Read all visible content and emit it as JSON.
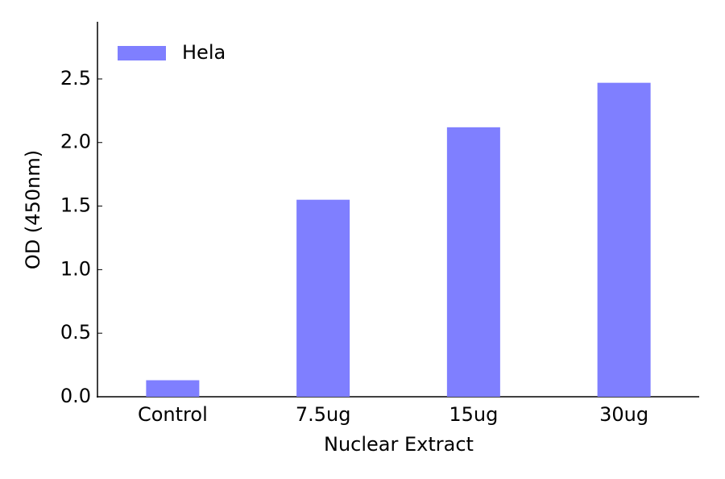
{
  "chart_data": {
    "type": "bar",
    "x_label": "Nuclear Extract",
    "y_label": "OD (450nm)",
    "categories": [
      "Control",
      "7.5ug",
      "15ug",
      "30ug"
    ],
    "series": [
      {
        "name": "Hela",
        "color": "#7f7fff",
        "values": [
          0.13,
          1.55,
          2.12,
          2.47
        ]
      }
    ],
    "ylim": [
      0,
      2.95
    ],
    "yticks": [
      {
        "value": 0,
        "label": "0.0"
      },
      0.5,
      {
        "value": 1,
        "label": "1.0"
      },
      1.5,
      {
        "value": 2,
        "label": "2.0"
      },
      2.5
    ],
    "grid": false,
    "legend": "upper left"
  }
}
